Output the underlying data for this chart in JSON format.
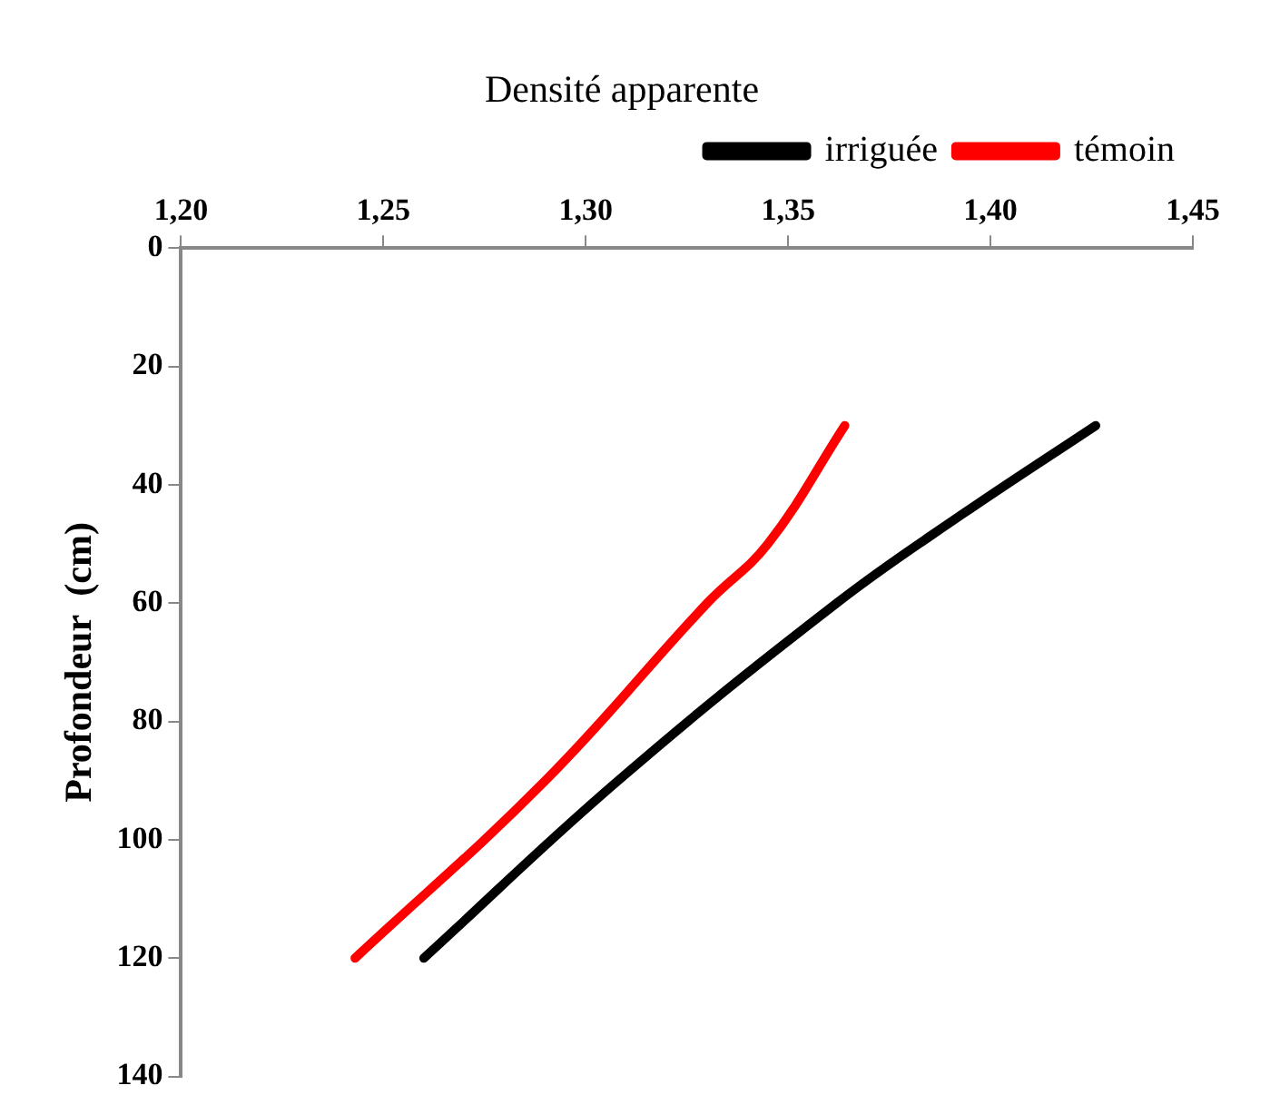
{
  "chart_data": {
    "type": "line",
    "title": "Densité apparente",
    "ylabel": "Profondeur  (cm)",
    "xlim": [
      1.2,
      1.45
    ],
    "xticks": [
      {
        "value": 1.2,
        "label": "1,20"
      },
      {
        "value": 1.25,
        "label": "1,25"
      },
      {
        "value": 1.3,
        "label": "1,30"
      },
      {
        "value": 1.35,
        "label": "1,35"
      },
      {
        "value": 1.4,
        "label": "1,40"
      },
      {
        "value": 1.45,
        "label": "1,45"
      }
    ],
    "ylim": [
      140,
      0
    ],
    "yticks": [
      0,
      20,
      40,
      60,
      80,
      100,
      120,
      140
    ],
    "series": [
      {
        "name": "irriguée",
        "color": "#000000",
        "x": [
          1.426,
          1.393,
          1.362,
          1.308,
          1.26
        ],
        "values": [
          30,
          45,
          60,
          90,
          120
        ]
      },
      {
        "name": "témoin",
        "color": "#ff0000",
        "x": [
          1.364,
          1.345,
          1.33,
          1.29,
          1.243
        ],
        "values": [
          30,
          50,
          60,
          90,
          120
        ]
      }
    ],
    "grid": false,
    "legend": "top right",
    "marker": "none",
    "line_style": "solid"
  }
}
